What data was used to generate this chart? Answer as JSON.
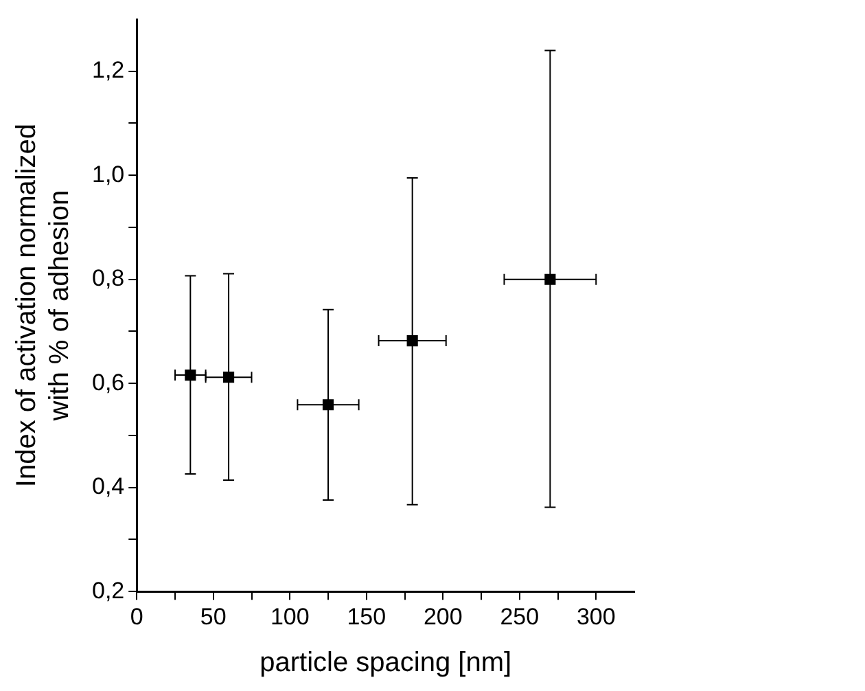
{
  "chart_data": {
    "type": "scatter",
    "xlabel": "particle spacing [nm]",
    "ylabel": "Index of activation normalized\nwith % of adhesion",
    "x": [
      35,
      60,
      125,
      180,
      270
    ],
    "values": [
      0.616,
      0.612,
      0.559,
      0.682,
      0.8
    ],
    "errors": [
      [
        0.426,
        0.807
      ],
      [
        0.414,
        0.811
      ],
      [
        0.376,
        0.742
      ],
      [
        0.367,
        0.995
      ],
      [
        0.362,
        1.24
      ]
    ],
    "xerrors": [
      10,
      15,
      20,
      22,
      30
    ],
    "color": "#000000",
    "marker": "square",
    "grid": false,
    "legend": false,
    "xlim": [
      0,
      325
    ],
    "ylim": [
      0.2,
      1.3
    ],
    "xticks": [
      0,
      {
        "value": 25,
        "label": null
      },
      50,
      {
        "value": 75,
        "label": null
      },
      100,
      {
        "value": 125,
        "label": null
      },
      150,
      {
        "value": 175,
        "label": null
      },
      200,
      {
        "value": 225,
        "label": null
      },
      250,
      {
        "value": 275,
        "label": null
      },
      300
    ],
    "yticks": [
      {
        "value": 0.2,
        "label": "0,2"
      },
      {
        "value": 0.3,
        "label": null
      },
      {
        "value": 0.4,
        "label": "0,4"
      },
      {
        "value": 0.5,
        "label": null
      },
      {
        "value": 0.6,
        "label": "0,6"
      },
      {
        "value": 0.7,
        "label": null
      },
      {
        "value": 0.8,
        "label": "0,8"
      },
      {
        "value": 0.9,
        "label": null
      },
      {
        "value": 1.0,
        "label": "1,0"
      },
      {
        "value": 1.1,
        "label": null
      },
      {
        "value": 1.2,
        "label": "1,2"
      }
    ]
  }
}
